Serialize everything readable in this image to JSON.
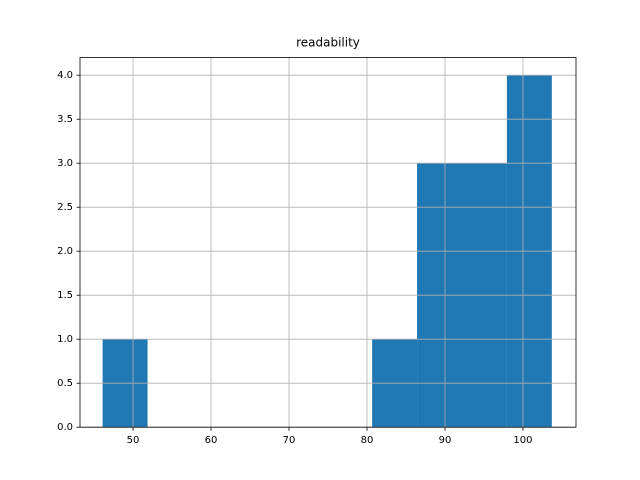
{
  "chart_data": {
    "type": "histogram",
    "title": "readability",
    "bins": [
      46.1,
      51.86,
      57.62,
      63.38,
      69.14,
      74.9,
      80.66,
      86.42,
      92.18,
      97.94,
      103.7
    ],
    "counts": [
      1,
      0,
      0,
      0,
      0,
      0,
      1,
      3,
      3,
      4
    ],
    "color": "#1f77b4",
    "xlim": [
      43.2,
      106.8
    ],
    "xticks": [
      50,
      60,
      70,
      80,
      90,
      100
    ],
    "ylim": [
      0,
      4.2
    ],
    "yticks": [
      {
        "value": 0,
        "label": "0.0"
      },
      0.5,
      {
        "value": 1,
        "label": "1.0"
      },
      1.5,
      {
        "value": 2,
        "label": "2.0"
      },
      2.5,
      {
        "value": 3,
        "label": "3.0"
      },
      3.5,
      {
        "value": 4,
        "label": "4.0"
      }
    ],
    "grid": true
  }
}
